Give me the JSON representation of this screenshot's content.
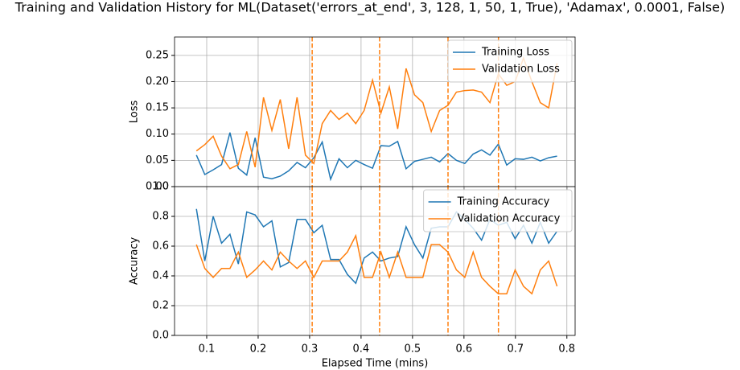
{
  "chart_data": [
    {
      "type": "line",
      "title": "Training and Validation History for ML(Dataset('errors_at_end', 3, 128, 1, 50, 1, True), 'Adamax', 0.0001, False)",
      "ylabel": "Loss",
      "x": [
        0.08,
        0.0963,
        0.1126,
        0.1289,
        0.1452,
        0.1615,
        0.1778,
        0.1941,
        0.2104,
        0.2267,
        0.243,
        0.2593,
        0.2756,
        0.2919,
        0.3082,
        0.3245,
        0.3408,
        0.3571,
        0.3734,
        0.3897,
        0.406,
        0.4223,
        0.4386,
        0.4549,
        0.4712,
        0.4875,
        0.5038,
        0.5201,
        0.5364,
        0.5527,
        0.569,
        0.5853,
        0.6016,
        0.6179,
        0.6342,
        0.6505,
        0.6668,
        0.6831,
        0.6994,
        0.7157,
        0.732,
        0.7483,
        0.7646,
        0.7809
      ],
      "series": [
        {
          "name": "Training Loss",
          "color": "#1f77b4",
          "values": [
            0.06,
            0.023,
            0.032,
            0.042,
            0.103,
            0.035,
            0.022,
            0.093,
            0.018,
            0.015,
            0.02,
            0.03,
            0.046,
            0.036,
            0.055,
            0.085,
            0.014,
            0.053,
            0.036,
            0.05,
            0.042,
            0.035,
            0.078,
            0.077,
            0.086,
            0.034,
            0.048,
            0.052,
            0.056,
            0.047,
            0.063,
            0.05,
            0.044,
            0.062,
            0.07,
            0.06,
            0.081,
            0.041,
            0.053,
            0.052,
            0.056,
            0.049,
            0.055,
            0.058
          ]
        },
        {
          "name": "Validation Loss",
          "color": "#ff7f0e",
          "values": [
            0.068,
            0.08,
            0.096,
            0.058,
            0.034,
            0.042,
            0.105,
            0.037,
            0.17,
            0.107,
            0.166,
            0.072,
            0.17,
            0.06,
            0.044,
            0.12,
            0.145,
            0.128,
            0.14,
            0.12,
            0.145,
            0.203,
            0.14,
            0.19,
            0.11,
            0.225,
            0.175,
            0.16,
            0.105,
            0.145,
            0.155,
            0.18,
            0.183,
            0.184,
            0.18,
            0.16,
            0.215,
            0.193,
            0.2,
            0.245,
            0.2,
            0.16,
            0.15,
            0.235
          ]
        }
      ],
      "vlines": [
        0.305,
        0.436,
        0.569,
        0.667
      ],
      "vline_color": "#ff7f0e",
      "xlim": [
        0.0375,
        0.816
      ],
      "xticks": [
        0.1,
        0.2,
        0.3,
        0.4,
        0.5,
        0.6,
        0.7,
        0.8
      ],
      "ylim": [
        0,
        0.285
      ],
      "yticks": [
        {
          "value": 0,
          "label": "0.00"
        },
        {
          "value": 0.05,
          "label": "0.05"
        },
        {
          "value": 0.1,
          "label": "0.10"
        },
        {
          "value": 0.15,
          "label": "0.15"
        },
        {
          "value": 0.2,
          "label": "0.20"
        },
        {
          "value": 0.25,
          "label": "0.25"
        }
      ],
      "grid": true,
      "legend": "upper right"
    },
    {
      "type": "line",
      "ylabel": "Accuracy",
      "xlabel": "Elapsed Time (mins)",
      "x": [
        0.08,
        0.0963,
        0.1126,
        0.1289,
        0.1452,
        0.1615,
        0.1778,
        0.1941,
        0.2104,
        0.2267,
        0.243,
        0.2593,
        0.2756,
        0.2919,
        0.3082,
        0.3245,
        0.3408,
        0.3571,
        0.3734,
        0.3897,
        0.406,
        0.4223,
        0.4386,
        0.4549,
        0.4712,
        0.4875,
        0.5038,
        0.5201,
        0.5364,
        0.5527,
        0.569,
        0.5853,
        0.6016,
        0.6179,
        0.6342,
        0.6505,
        0.6668,
        0.6831,
        0.6994,
        0.7157,
        0.732,
        0.7483,
        0.7646,
        0.7809
      ],
      "series": [
        {
          "name": "Training Accuracy",
          "color": "#1f77b4",
          "values": [
            0.85,
            0.5,
            0.8,
            0.62,
            0.68,
            0.48,
            0.83,
            0.81,
            0.73,
            0.77,
            0.46,
            0.49,
            0.78,
            0.78,
            0.69,
            0.74,
            0.51,
            0.51,
            0.41,
            0.35,
            0.52,
            0.56,
            0.5,
            0.52,
            0.53,
            0.73,
            0.61,
            0.52,
            0.72,
            0.73,
            0.73,
            0.83,
            0.78,
            0.72,
            0.64,
            0.78,
            0.74,
            0.76,
            0.65,
            0.74,
            0.62,
            0.76,
            0.62,
            0.7
          ]
        },
        {
          "name": "Validation Accuracy",
          "color": "#ff7f0e",
          "values": [
            0.61,
            0.45,
            0.39,
            0.45,
            0.45,
            0.56,
            0.39,
            0.44,
            0.5,
            0.44,
            0.56,
            0.5,
            0.45,
            0.5,
            0.39,
            0.5,
            0.5,
            0.5,
            0.56,
            0.67,
            0.39,
            0.39,
            0.56,
            0.39,
            0.56,
            0.39,
            0.39,
            0.39,
            0.61,
            0.61,
            0.56,
            0.44,
            0.39,
            0.56,
            0.39,
            0.33,
            0.28,
            0.28,
            0.44,
            0.33,
            0.28,
            0.44,
            0.5,
            0.33
          ]
        }
      ],
      "vlines": [
        0.305,
        0.436,
        0.569,
        0.667
      ],
      "vline_color": "#ff7f0e",
      "xlim": [
        0.0375,
        0.816
      ],
      "xticks": [
        0.1,
        0.2,
        0.3,
        0.4,
        0.5,
        0.6,
        0.7,
        0.8
      ],
      "ylim": [
        0,
        1.0
      ],
      "yticks": [
        {
          "value": 0,
          "label": "0.0"
        },
        {
          "value": 0.2,
          "label": "0.2"
        },
        {
          "value": 0.4,
          "label": "0.4"
        },
        {
          "value": 0.6,
          "label": "0.6"
        },
        {
          "value": 0.8,
          "label": "0.8"
        },
        {
          "value": 1.0,
          "label": "1.0"
        }
      ],
      "grid": true,
      "legend": "upper right"
    }
  ]
}
